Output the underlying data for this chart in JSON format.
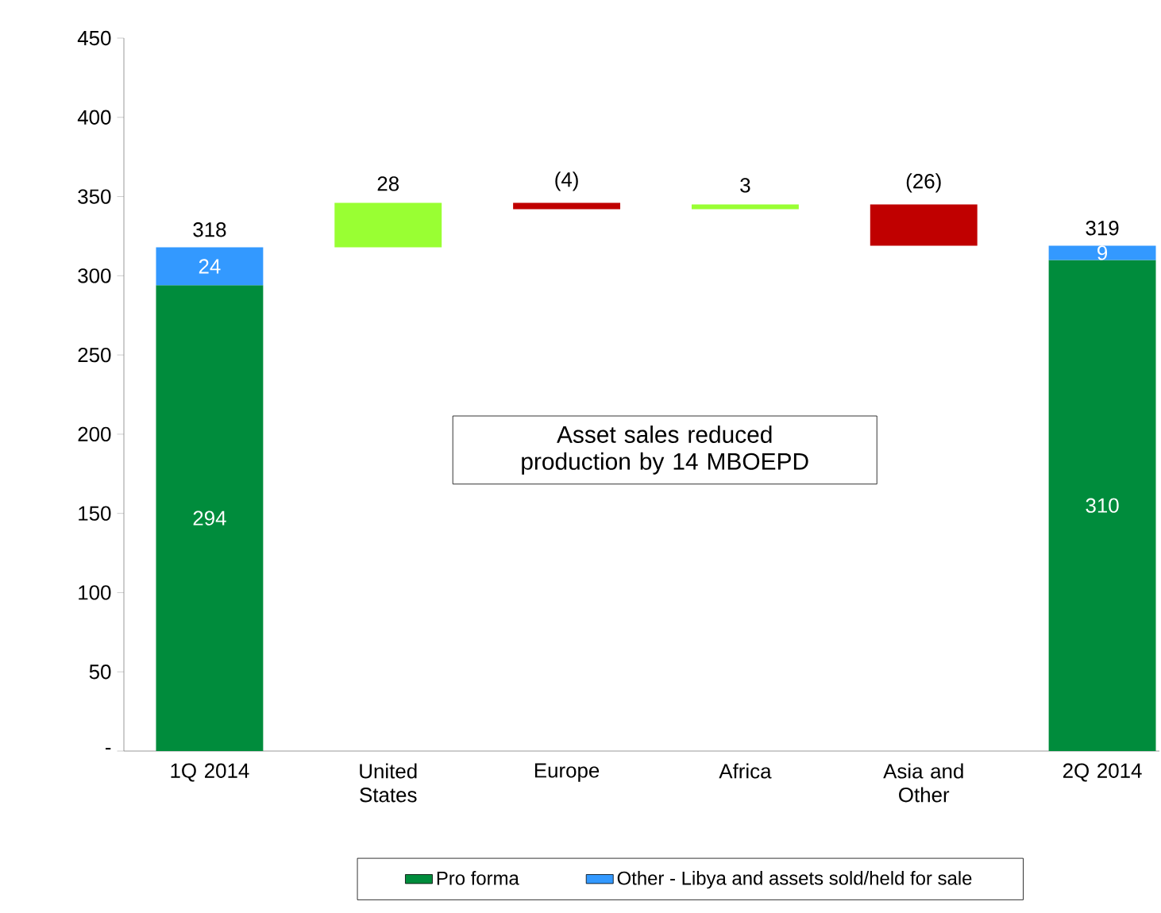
{
  "chart_data": {
    "type": "bar",
    "stacked": true,
    "categories": [
      "1Q 2014",
      "United States",
      "Europe",
      "Africa",
      "Asia and Other",
      "2Q 2014"
    ],
    "series": [
      {
        "name": "Pro forma",
        "color": "#008c3c",
        "values": [
          294,
          null,
          null,
          null,
          null,
          310
        ],
        "value_labels": [
          "294",
          null,
          null,
          null,
          null,
          "310"
        ]
      },
      {
        "name": "Other - Libya and assets sold/held for sale",
        "color": "#3399ff",
        "values": [
          24,
          null,
          null,
          null,
          null,
          9
        ],
        "value_labels": [
          "24",
          null,
          null,
          null,
          null,
          "9"
        ]
      },
      {
        "colors": [
          null,
          "#99ff33",
          "#c00000",
          "#99ff33",
          "#c00000",
          null
        ],
        "values": [
          null,
          28,
          -4,
          3,
          -26,
          null
        ],
        "base": [
          null,
          318,
          346,
          342,
          345,
          null
        ],
        "value_labels": [
          null,
          "28",
          "(4)",
          "3",
          "(26)",
          null
        ]
      }
    ],
    "totals": [
      "318",
      null,
      null,
      null,
      null,
      "319"
    ],
    "ylim": [
      0,
      450
    ],
    "yticks": [
      {
        "value": 0,
        "label": "-"
      },
      50,
      100,
      150,
      200,
      250,
      300,
      350,
      400,
      450
    ],
    "annotations": [
      "Asset sales reduced production by 14 MBOEPD"
    ],
    "legend": "bottom"
  }
}
